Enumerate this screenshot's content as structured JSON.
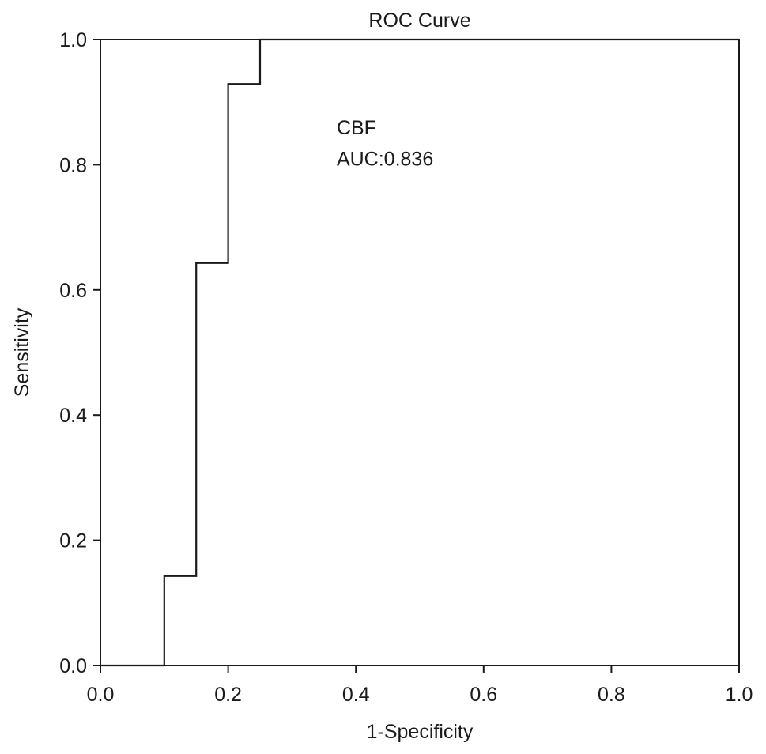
{
  "chart_data": {
    "type": "line",
    "title": "ROC Curve",
    "xlabel": "1-Specificity",
    "ylabel": "Sensitivity",
    "xlim": [
      0.0,
      1.0
    ],
    "ylim": [
      0.0,
      1.0
    ],
    "x_ticks": [
      "0.0",
      "0.2",
      "0.4",
      "0.6",
      "0.8",
      "1.0"
    ],
    "y_ticks": [
      "0.0",
      "0.2",
      "0.4",
      "0.6",
      "0.8",
      "1.0"
    ],
    "grid": false,
    "line_color": "#1a1a1a",
    "series": [
      {
        "step": true,
        "x": [
          0.0,
          0.1,
          0.1,
          0.15,
          0.15,
          0.2,
          0.2,
          0.25,
          0.25,
          1.0
        ],
        "y": [
          0.0,
          0.0,
          0.143,
          0.143,
          0.643,
          0.643,
          0.929,
          0.929,
          1.0,
          1.0
        ]
      }
    ],
    "annotations": [
      {
        "text": "CBF",
        "x": 0.37,
        "y": 0.86
      },
      {
        "text": "AUC:0.836",
        "x": 0.37,
        "y": 0.81
      }
    ]
  }
}
